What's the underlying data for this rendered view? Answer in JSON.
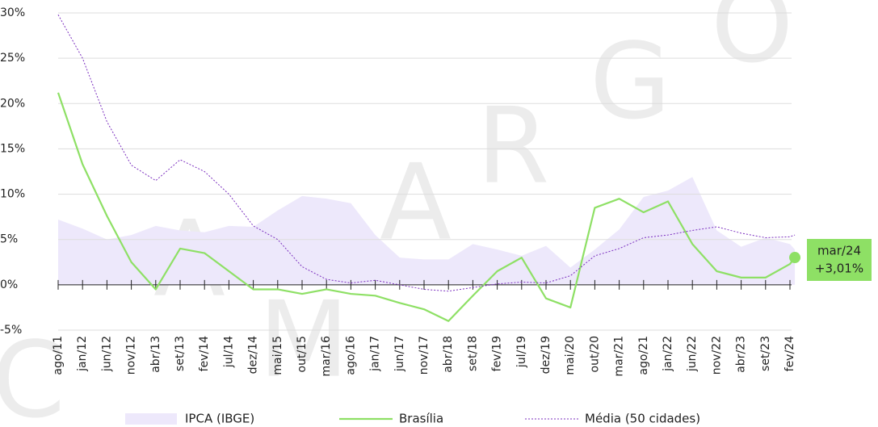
{
  "chart_data": {
    "type": "line",
    "categories": [
      "ago/11",
      "jan/12",
      "jun/12",
      "nov/12",
      "abr/13",
      "set/13",
      "fev/14",
      "jul/14",
      "dez/14",
      "mai/15",
      "out/15",
      "mar/16",
      "ago/16",
      "jan/17",
      "jun/17",
      "nov/17",
      "abr/18",
      "set/18",
      "fev/19",
      "jul/19",
      "dez/19",
      "mai/20",
      "out/20",
      "mar/21",
      "ago/21",
      "jan/22",
      "jun/22",
      "nov/22",
      "abr/23",
      "set/23",
      "fev/24",
      null
    ],
    "series": [
      {
        "name": "IPCA (IBGE)",
        "style": "area",
        "color": "#ede8fb",
        "values": [
          7.2,
          6.2,
          5,
          5.5,
          6.5,
          6,
          5.8,
          6.5,
          6.4,
          8.2,
          9.8,
          9.5,
          9,
          5.5,
          3,
          2.8,
          2.8,
          4.5,
          3.9,
          3.2,
          4.3,
          1.9,
          3.9,
          6.1,
          9.7,
          10.4,
          11.9,
          6,
          4.2,
          5.2,
          4.5,
          3.9
        ]
      },
      {
        "name": "Brasília",
        "style": "solid",
        "color": "#8ee065",
        "values": [
          21.2,
          13.3,
          7.6,
          2.5,
          -0.5,
          4,
          3.5,
          1.5,
          -0.5,
          -0.5,
          -1,
          -0.5,
          -1,
          -1.2,
          -2,
          -2.7,
          -4,
          -1.2,
          1.5,
          3,
          -1.5,
          -2.5,
          8.5,
          9.5,
          8,
          9.2,
          4.5,
          1.5,
          0.8,
          0.8,
          2.3,
          3.01
        ]
      },
      {
        "name": "Média (50 cidades)",
        "style": "dashed",
        "color": "#7b2fbf",
        "values": [
          29.8,
          25,
          18,
          13.2,
          11.5,
          13.8,
          12.5,
          10,
          6.5,
          5,
          2,
          0.6,
          0.2,
          0.5,
          0,
          -0.5,
          -0.7,
          -0.3,
          0.1,
          0.3,
          0.2,
          1,
          3.2,
          4,
          5.2,
          5.5,
          6,
          6.4,
          5.7,
          5.2,
          5.3,
          5.5
        ]
      }
    ],
    "ylim": [
      -5,
      30
    ],
    "yticks": [
      {
        "value": -5,
        "label": "-5%"
      },
      {
        "value": 0,
        "label": "0%"
      },
      {
        "value": 5,
        "label": "5%"
      },
      {
        "value": 10,
        "label": "10%"
      },
      {
        "value": 15,
        "label": "15%"
      },
      {
        "value": 20,
        "label": "20%"
      },
      {
        "value": 25,
        "label": "25%"
      },
      {
        "value": 30,
        "label": "30%"
      }
    ],
    "grid": true,
    "annotation": {
      "date": "mar/24",
      "value_label": "+3,01%",
      "series": 1,
      "color": "#8ee065"
    },
    "watermark": [
      "C",
      "A",
      "M",
      "A",
      "R",
      "G",
      "O"
    ],
    "legend": "bottom"
  }
}
